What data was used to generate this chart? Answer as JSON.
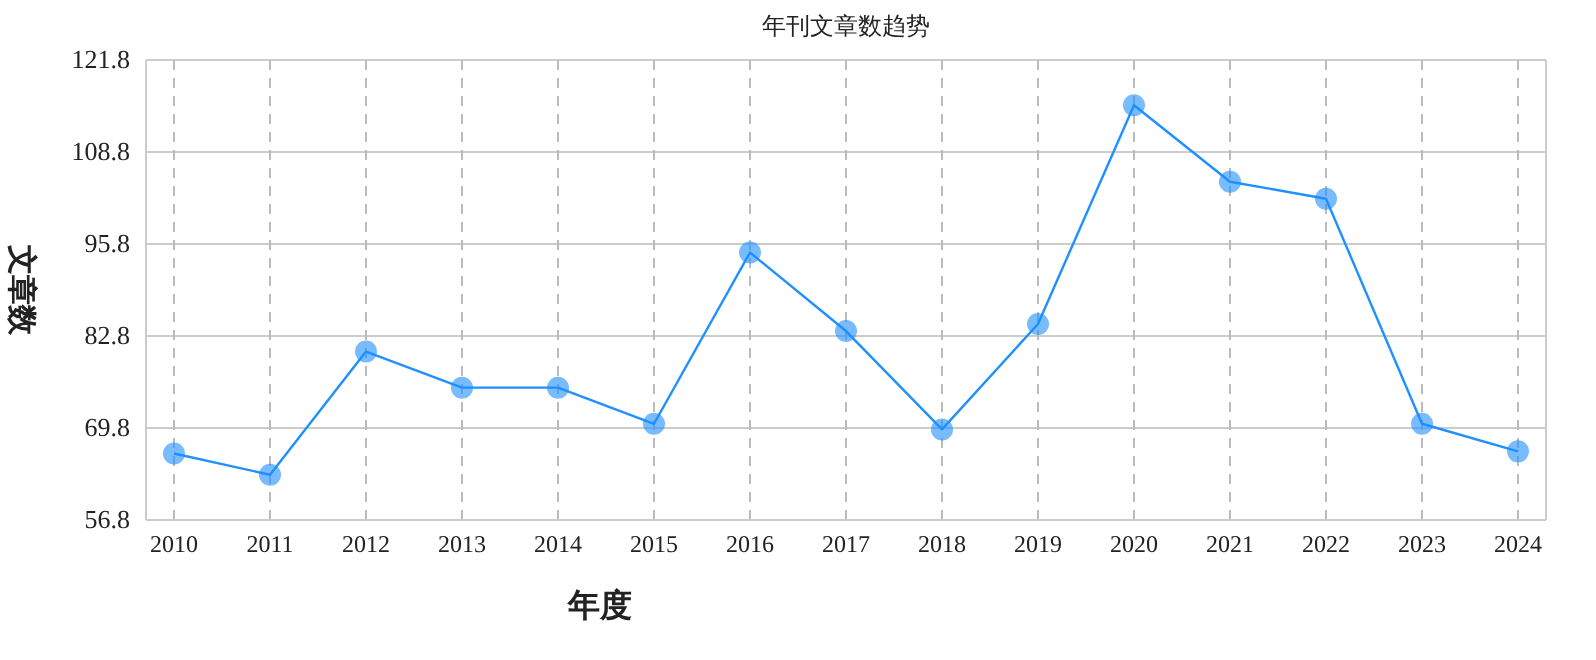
{
  "chart_data": {
    "type": "line",
    "title": "年刊文章数趋势",
    "xlabel": "年度",
    "ylabel": "文章数",
    "categories": [
      "2010",
      "2011",
      "2012",
      "2013",
      "2014",
      "2015",
      "2016",
      "2017",
      "2018",
      "2019",
      "2020",
      "2021",
      "2022",
      "2023",
      "2024"
    ],
    "series": [
      {
        "color": "#1e90ff",
        "values": [
          66.2,
          63.2,
          80.6,
          75.5,
          75.5,
          70.4,
          94.6,
          83.5,
          69.6,
          84.5,
          115.4,
          104.6,
          102.2,
          70.4,
          66.5
        ]
      }
    ],
    "ylim": [
      56.8,
      121.8
    ],
    "yticks": [
      {
        "value": 56.8,
        "label": "56.8"
      },
      {
        "value": 69.8,
        "label": "69.8"
      },
      {
        "value": 82.8,
        "label": "82.8"
      },
      {
        "value": 95.8,
        "label": "95.8"
      },
      {
        "value": 108.8,
        "label": "108.8"
      },
      {
        "value": 121.8,
        "label": "121.8"
      }
    ],
    "grid": true,
    "marker": "circle",
    "line_style": "solid"
  }
}
